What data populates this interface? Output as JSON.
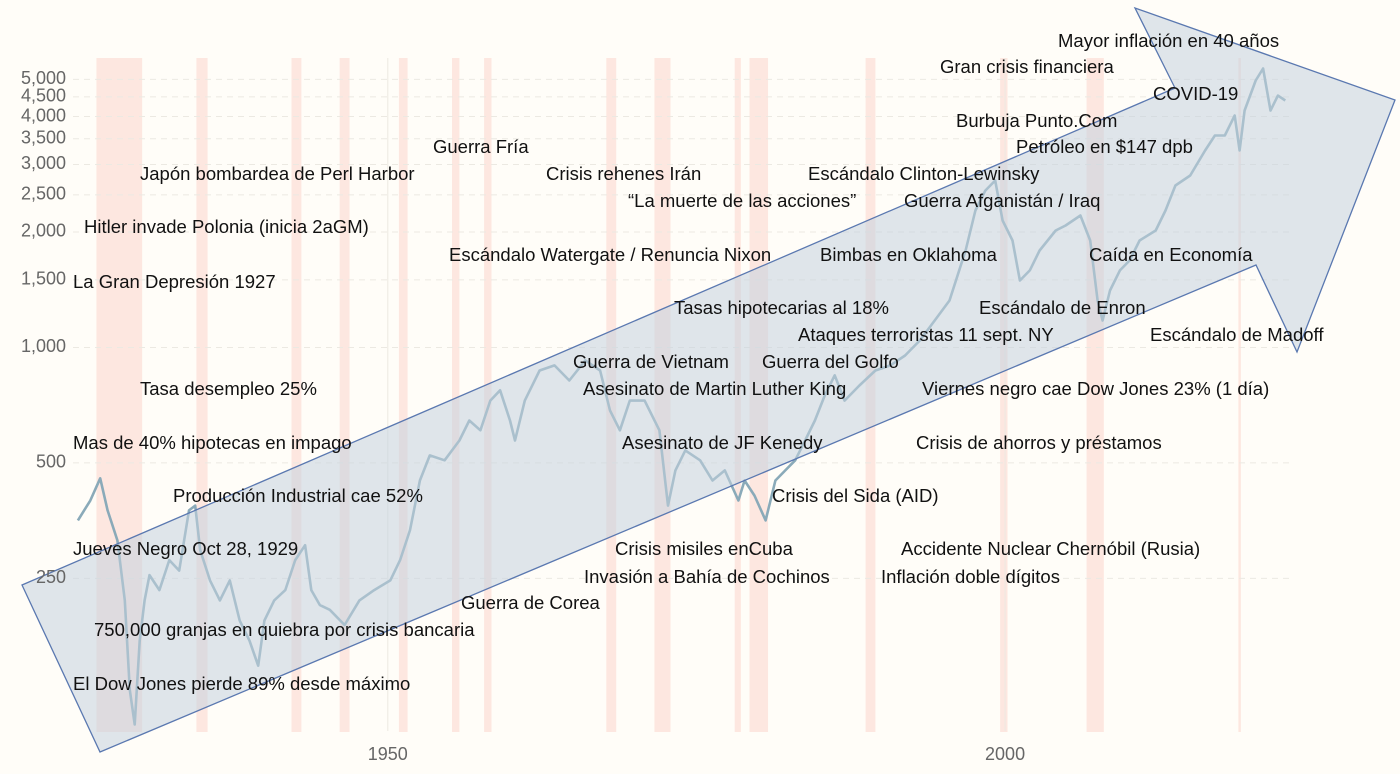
{
  "chart_data": {
    "type": "line",
    "y_log": true,
    "grid": true,
    "color": "#8aaab9",
    "band_color": "#fde3dc",
    "arrow_color": "#c5d2df",
    "xlim": [
      1924.5,
      2023
    ],
    "xticks": [
      1950,
      2000
    ],
    "ylim": [
      100,
      6000
    ],
    "yticks": [
      250,
      500,
      {
        "value": 1000,
        "label": "1,000"
      },
      {
        "value": 1500,
        "label": "1,500"
      },
      {
        "value": 2000,
        "label": "2,000"
      },
      {
        "value": 2500,
        "label": "2,500"
      },
      {
        "value": 3000,
        "label": "3,000"
      },
      {
        "value": 3500,
        "label": "3,500"
      },
      {
        "value": 4000,
        "label": "4,000"
      },
      {
        "value": 4500,
        "label": "4,500"
      },
      {
        "value": 5000,
        "label": "5,000"
      }
    ],
    "bands": [
      [
        1926.4,
        1930.1
      ],
      [
        1934.5,
        1935.4
      ],
      [
        1942.2,
        1943.0
      ],
      [
        1946.1,
        1946.9
      ],
      [
        1950.9,
        1951.6
      ],
      [
        1955.2,
        1955.8
      ],
      [
        1957.8,
        1958.4
      ],
      [
        1967.7,
        1968.5
      ],
      [
        1971.6,
        1972.9
      ],
      [
        1978.1,
        1978.6
      ],
      [
        1979.3,
        1980.8
      ],
      [
        1988.7,
        1989.5
      ],
      [
        1999.6,
        2000.2
      ],
      [
        2006.6,
        2008.0
      ],
      [
        2018.9,
        2019.1
      ]
    ],
    "x": [
      1924.9,
      1925.9,
      1926.7,
      1927.3,
      1928.1,
      1928.7,
      1929.1,
      1929.5,
      1929.9,
      1930.3,
      1930.7,
      1931.5,
      1932.3,
      1933.1,
      1933.9,
      1934.4,
      1934.8,
      1935.6,
      1936.4,
      1937.2,
      1938.0,
      1938.8,
      1939.5,
      1940.0,
      1940.8,
      1941.7,
      1942.5,
      1943.3,
      1943.8,
      1944.5,
      1945.3,
      1946.5,
      1947.7,
      1948.9,
      1950.2,
      1951.0,
      1951.8,
      1952.6,
      1953.4,
      1954.6,
      1955.8,
      1956.6,
      1957.5,
      1958.3,
      1959.1,
      1959.9,
      1960.3,
      1961.1,
      1962.3,
      1963.5,
      1964.7,
      1966.0,
      1967.2,
      1968.0,
      1968.8,
      1969.6,
      1970.8,
      1972.0,
      1972.7,
      1973.3,
      1974.1,
      1975.3,
      1976.3,
      1977.3,
      1978.4,
      1978.9,
      1979.7,
      1980.6,
      1981.4,
      1982.2,
      1983.0,
      1983.8,
      1984.6,
      1985.4,
      1986.2,
      1987.0,
      1988.2,
      1989.5,
      1990.7,
      1991.9,
      1993.1,
      1994.3,
      1995.5,
      1996.8,
      1997.6,
      1998.4,
      1999.2,
      1999.8,
      2000.6,
      2001.2,
      2002.0,
      2002.8,
      2004.1,
      2004.9,
      2006.1,
      2006.9,
      2007.5,
      2007.9,
      2008.5,
      2009.3,
      2010.1,
      2010.9,
      2012.2,
      2013.0,
      2013.8,
      2015.0,
      2016.2,
      2017.0,
      2017.8,
      2018.6,
      2019.0,
      2019.4,
      2020.3,
      2020.9,
      2021.5,
      2022.1,
      2022.7
    ],
    "values": [
      354,
      399,
      456,
      376,
      314,
      219,
      128,
      104,
      172,
      219,
      255,
      233,
      279,
      262,
      376,
      387,
      296,
      247,
      219,
      247,
      194,
      172,
      148,
      194,
      219,
      233,
      279,
      305,
      233,
      213,
      207,
      189,
      219,
      233,
      247,
      279,
      334,
      450,
      523,
      508,
      572,
      645,
      608,
      727,
      773,
      645,
      572,
      727,
      871,
      898,
      820,
      925,
      871,
      685,
      608,
      727,
      727,
      608,
      387,
      478,
      539,
      508,
      450,
      478,
      399,
      450,
      411,
      354,
      450,
      478,
      508,
      572,
      645,
      750,
      846,
      727,
      796,
      871,
      898,
      953,
      1043,
      1176,
      1326,
      1790,
      2276,
      2565,
      2725,
      2143,
      1900,
      1495,
      1588,
      1790,
      2018,
      2080,
      2208,
      1900,
      1326,
      1176,
      1408,
      1588,
      1686,
      1900,
      2018,
      2276,
      2644,
      2807,
      3262,
      3569,
      3569,
      4025,
      3262,
      4147,
      4965,
      5336,
      4147,
      4537,
      4404
    ],
    "annotations": [
      "Mayor inflación en 40 años",
      "Gran crisis financiera",
      "COVID-19",
      "Burbuja Punto.Com",
      "Petróleo en $147 dpb",
      "Guerra Fría",
      "Japón bombardea de Perl Harbor",
      "Crisis rehenes Irán",
      "Escándalo Clinton-Lewinsky",
      "“La muerte de las acciones”",
      "Guerra Afganistán / Iraq",
      "Hitler invade Polonia (inicia 2aGM)",
      "Escándalo Watergate / Renuncia Nixon",
      "Bimbas en Oklahoma",
      "Caída en Economía",
      "La Gran Depresión 1927",
      "Tasas hipotecarias al 18%",
      "Escándalo de Enron",
      "Ataques terroristas 11 sept. NY",
      "Escándalo de Madoff",
      "Guerra de Vietnam",
      "Guerra del Golfo",
      "Tasa desempleo 25%",
      "Asesinato de Martin Luther King",
      "Viernes negro cae Dow Jones 23% (1 día)",
      "Mas de 40% hipotecas en impago",
      "Asesinato de JF Kenedy",
      "Crisis de ahorros y préstamos",
      "Producción Industrial cae 52%",
      "Crisis del Sida (AID)",
      "Jueves Negro Oct 28, 1929",
      "Crisis misiles enCuba",
      "Accidente Nuclear Chernóbil (Rusia)",
      "Invasión a Bahía de Cochinos",
      "Inflación doble dígitos",
      "Guerra de Corea",
      "750,000 granjas en quiebra por crisis bancaria",
      "El Dow Jones pierde 89% desde máximo"
    ]
  }
}
